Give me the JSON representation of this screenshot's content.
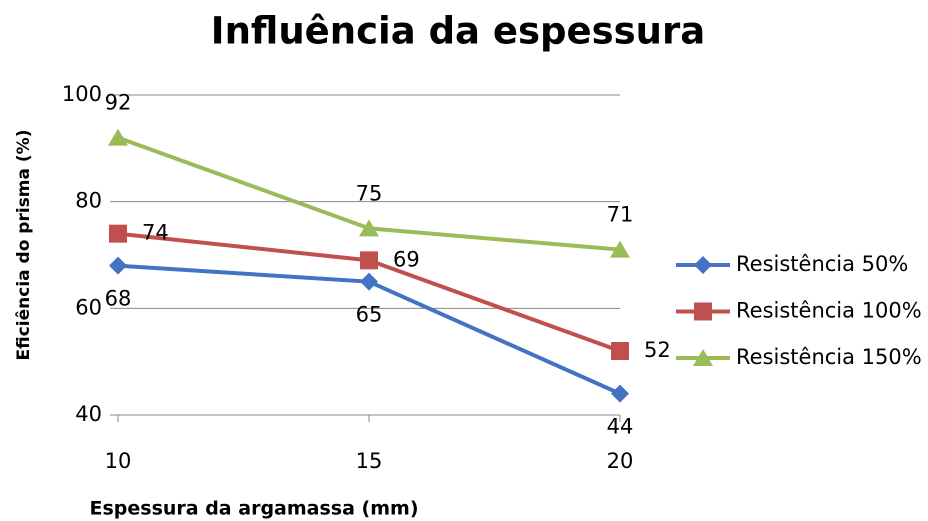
{
  "chart_data": {
    "type": "line",
    "title": "Influência da espessura",
    "xlabel": "Espessura da argamassa (mm)",
    "ylabel": "Eficiência do prisma (%)",
    "x": [
      10,
      15,
      20
    ],
    "series": [
      {
        "name": "Resistência 50%",
        "color": "#4472c4",
        "marker": "diamond",
        "values": [
          68,
          65,
          44
        ]
      },
      {
        "name": "Resistência 100%",
        "color": "#c0504d",
        "marker": "square",
        "values": [
          74,
          69,
          52
        ]
      },
      {
        "name": "Resistência 150%",
        "color": "#9bbb59",
        "marker": "triangle",
        "values": [
          92,
          75,
          71
        ]
      }
    ],
    "xlim": [
      10,
      20
    ],
    "xticks": [
      10,
      15,
      20
    ],
    "ylim": [
      40,
      100
    ],
    "yticks": [
      40,
      60,
      80,
      100
    ],
    "grid": true,
    "legend": "right"
  }
}
